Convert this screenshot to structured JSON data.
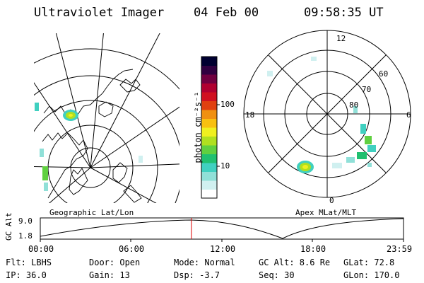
{
  "header": {
    "instrument": "Ultraviolet Imager",
    "date": "04 Feb 00",
    "time": "09:58:35 UT"
  },
  "colorbar": {
    "unit_label": "photon cm⁻²s⁻¹",
    "tick_100": "100",
    "tick_10": "10",
    "scale": "log",
    "colors": [
      "#ffffff",
      "#d0f0f0",
      "#90e0d8",
      "#40d0c0",
      "#20c070",
      "#60d040",
      "#b0e020",
      "#f0f020",
      "#f8c010",
      "#f09010",
      "#e04010",
      "#d01020",
      "#b00030",
      "#700040",
      "#300040",
      "#000030"
    ]
  },
  "left_panel": {
    "caption": "Geographic Lat/Lon"
  },
  "right_panel": {
    "caption": "Apex MLat/MLT",
    "mlt_12": "12",
    "mlt_18": "18",
    "mlt_6": "6",
    "mlt_0": "0",
    "lat_60": "60",
    "lat_70": "70",
    "lat_80": "80"
  },
  "altitude_plot": {
    "axis_label": "GC Alt",
    "y_top": "9.0",
    "y_bottom": "1.8",
    "t0": "00:00",
    "t1": "06:00",
    "t2": "12:00",
    "t3": "18:00",
    "t4": "23:59",
    "marker_time_fraction": 0.416,
    "marker_color": "#e00000"
  },
  "footer": {
    "flt": "Flt: LBHS",
    "door": "Door: Open",
    "mode": "Mode: Normal",
    "gc_alt": "GC Alt: 8.6 Re",
    "glat": "GLat:  72.8",
    "ip": "IP: 36.0",
    "gain": "Gain: 13",
    "dsp": "Dsp:    -3.7",
    "seq": "Seq: 30",
    "glon": "GLon: 170.0"
  }
}
